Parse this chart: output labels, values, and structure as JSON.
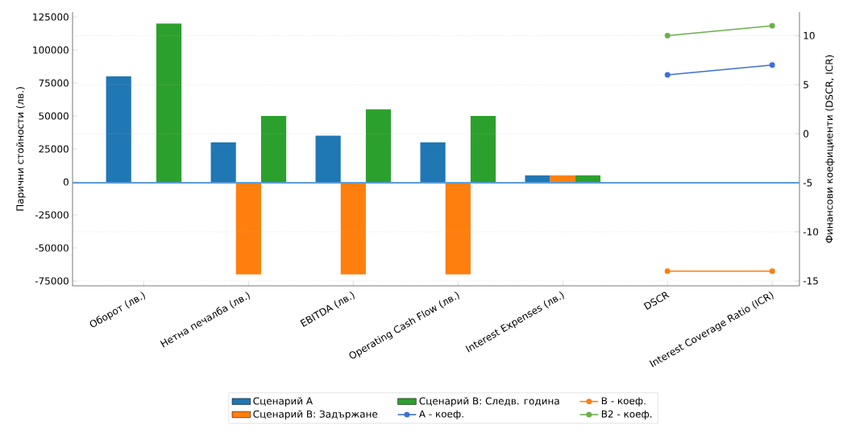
{
  "chart_data": {
    "type": "bar",
    "categories": [
      "Оборот (лв.)",
      "Нетна печалба (лв.)",
      "EBITDA (лв.)",
      "Operating Cash Flow (лв.)",
      "Interest Expenses (лв.)",
      "DSCR",
      "Interest Coverage Ratio (ICR)"
    ],
    "series": [
      {
        "name": "Сценарий A",
        "color": "#1f77b4",
        "values": [
          80000,
          30000,
          35000,
          30000,
          5000,
          null,
          null
        ]
      },
      {
        "name": "Сценарий B: Задържане",
        "color": "#ff7f0e",
        "values": [
          null,
          -70000,
          -70000,
          -70000,
          5000,
          null,
          null
        ]
      },
      {
        "name": "Сценарий B: Следв. година",
        "color": "#2ca02c",
        "values": [
          120000,
          50000,
          55000,
          50000,
          5000,
          null,
          null
        ]
      },
      {
        "name": "A - коеф.",
        "type": "line",
        "axis": "y2",
        "color": "#3f6fd8",
        "values": [
          null,
          null,
          null,
          null,
          null,
          6,
          7
        ]
      },
      {
        "name": "B - коеф.",
        "type": "line",
        "axis": "y2",
        "color": "#ff7f0e",
        "values": [
          null,
          null,
          null,
          null,
          null,
          -14,
          -14
        ]
      },
      {
        "name": "B2 - коеф.",
        "type": "line",
        "axis": "y2",
        "color": "#6ab04c",
        "values": [
          null,
          null,
          null,
          null,
          null,
          10,
          11
        ]
      }
    ],
    "ylabel": "Парични стойности (лв.)",
    "y2label": "Финансови коефициенти (DSCR, ICR)",
    "ylim": [
      -78700,
      128700
    ],
    "yticks": [
      -75000,
      -50000,
      -25000,
      0,
      25000,
      50000,
      75000,
      100000,
      125000
    ],
    "y2lim": [
      -15.5,
      12.4
    ],
    "y2ticks": [
      -15,
      -10,
      -5,
      0,
      5,
      10
    ],
    "ref_lines": [
      {
        "axis": "y2",
        "value": -5,
        "color": "#5b9bd5"
      }
    ],
    "grid": true,
    "legend": "bottom",
    "marker": "circle",
    "line_style": "solid"
  }
}
